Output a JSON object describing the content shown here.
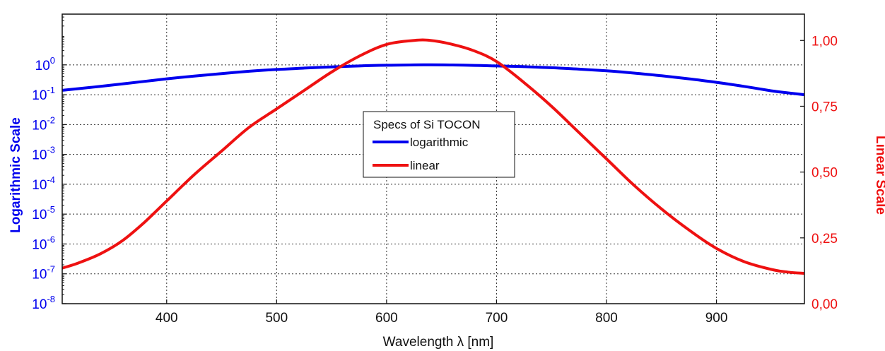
{
  "chart_data": {
    "type": "line",
    "title": "",
    "xlabel": "Wavelength λ [nm]",
    "ylabel_left": "Logarithmic Scale",
    "ylabel_right": "Linear Scale",
    "xlim": [
      305,
      980
    ],
    "ylim_left": [
      1e-08,
      50
    ],
    "yscale_left": "log",
    "ylim_right": [
      0,
      1.1
    ],
    "x_ticks": [
      "400",
      "500",
      "600",
      "700",
      "800",
      "900"
    ],
    "x_tick_values": [
      400,
      500,
      600,
      700,
      800,
      900
    ],
    "y_left_ticks": [
      {
        "base": "10",
        "exp": "-8",
        "value": 1e-08
      },
      {
        "base": "10",
        "exp": "-7",
        "value": 1e-07
      },
      {
        "base": "10",
        "exp": "-6",
        "value": 1e-06
      },
      {
        "base": "10",
        "exp": "-5",
        "value": 1e-05
      },
      {
        "base": "10",
        "exp": "-4",
        "value": 0.0001
      },
      {
        "base": "10",
        "exp": "-3",
        "value": 0.001
      },
      {
        "base": "10",
        "exp": "-2",
        "value": 0.01
      },
      {
        "base": "10",
        "exp": "-1",
        "value": 0.1
      },
      {
        "base": "10",
        "exp": "0",
        "value": 1
      }
    ],
    "y_right_ticks": [
      "0,00",
      "0,25",
      "0,50",
      "0,75",
      "1,00"
    ],
    "y_right_tick_values": [
      0,
      0.25,
      0.5,
      0.75,
      1.0
    ],
    "grid": true,
    "legend": {
      "title": "Specs of Si TOCON",
      "placement": "center"
    },
    "series": [
      {
        "name": "logarithmic",
        "axis": "left",
        "color": "#0000ee",
        "x": [
          305,
          320,
          340,
          360,
          380,
          400,
          425,
          450,
          475,
          500,
          525,
          550,
          575,
          600,
          625,
          640,
          660,
          680,
          700,
          725,
          750,
          775,
          800,
          825,
          850,
          875,
          900,
          925,
          950,
          965,
          980
        ],
        "y": [
          0.14,
          0.16,
          0.19,
          0.23,
          0.28,
          0.34,
          0.42,
          0.51,
          0.61,
          0.7,
          0.78,
          0.85,
          0.92,
          0.97,
          0.995,
          1.0,
          0.99,
          0.96,
          0.92,
          0.87,
          0.8,
          0.72,
          0.63,
          0.53,
          0.43,
          0.34,
          0.26,
          0.19,
          0.135,
          0.115,
          0.1
        ]
      },
      {
        "name": "linear",
        "axis": "right",
        "color": "#ee1111",
        "x": [
          305,
          320,
          340,
          360,
          380,
          400,
          425,
          450,
          475,
          500,
          525,
          550,
          575,
          600,
          625,
          640,
          660,
          680,
          700,
          725,
          750,
          775,
          800,
          825,
          850,
          875,
          900,
          925,
          950,
          965,
          980
        ],
        "y": [
          0.135,
          0.155,
          0.19,
          0.24,
          0.31,
          0.39,
          0.49,
          0.58,
          0.67,
          0.74,
          0.81,
          0.88,
          0.94,
          0.985,
          1.0,
          1.0,
          0.985,
          0.96,
          0.92,
          0.84,
          0.75,
          0.65,
          0.55,
          0.45,
          0.36,
          0.28,
          0.21,
          0.16,
          0.13,
          0.12,
          0.115
        ]
      }
    ]
  }
}
